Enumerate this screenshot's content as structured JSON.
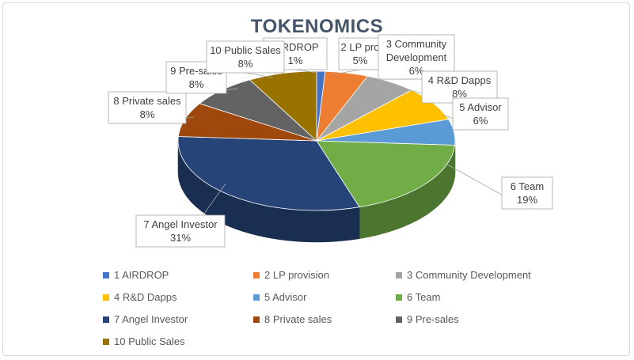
{
  "chart_data": {
    "type": "pie",
    "title": "TOKENOMICS",
    "categories": [
      "1 AIRDROP",
      "2 LP provision",
      "3 Community Development",
      "4 R&D Dapps",
      "5 Advisor",
      "6 Team",
      "7 Angel Investor",
      "8 Private sales",
      "9 Pre-sales",
      "10 Public Sales"
    ],
    "values": [
      1,
      5,
      6,
      8,
      6,
      19,
      31,
      8,
      8,
      8
    ],
    "colors": [
      "#4472c4",
      "#ed7d31",
      "#a5a5a5",
      "#ffc000",
      "#5b9bd5",
      "#70ad47",
      "#264478",
      "#9e480e",
      "#636363",
      "#997300"
    ],
    "callouts": [
      {
        "line1": "AIRDROP",
        "line2": "1%"
      },
      {
        "line1": "2 LP pro",
        "line2": "5%"
      },
      {
        "line1": "3 Community",
        "line2": "Development",
        "line3": "6%"
      },
      {
        "line1": "4 R&D Dapps",
        "line2": "8%"
      },
      {
        "line1": "5 Advisor",
        "line2": "6%"
      },
      {
        "line1": "6 Team",
        "line2": "19%"
      },
      {
        "line1": "7 Angel Investor",
        "line2": "31%"
      },
      {
        "line1": "8 Private sales",
        "line2": "8%"
      },
      {
        "line1": "9 Pre-sales",
        "line2": "8%"
      },
      {
        "line1": "10 Public Sales",
        "line2": "8%"
      }
    ],
    "legend": {
      "position": "bottom"
    }
  }
}
